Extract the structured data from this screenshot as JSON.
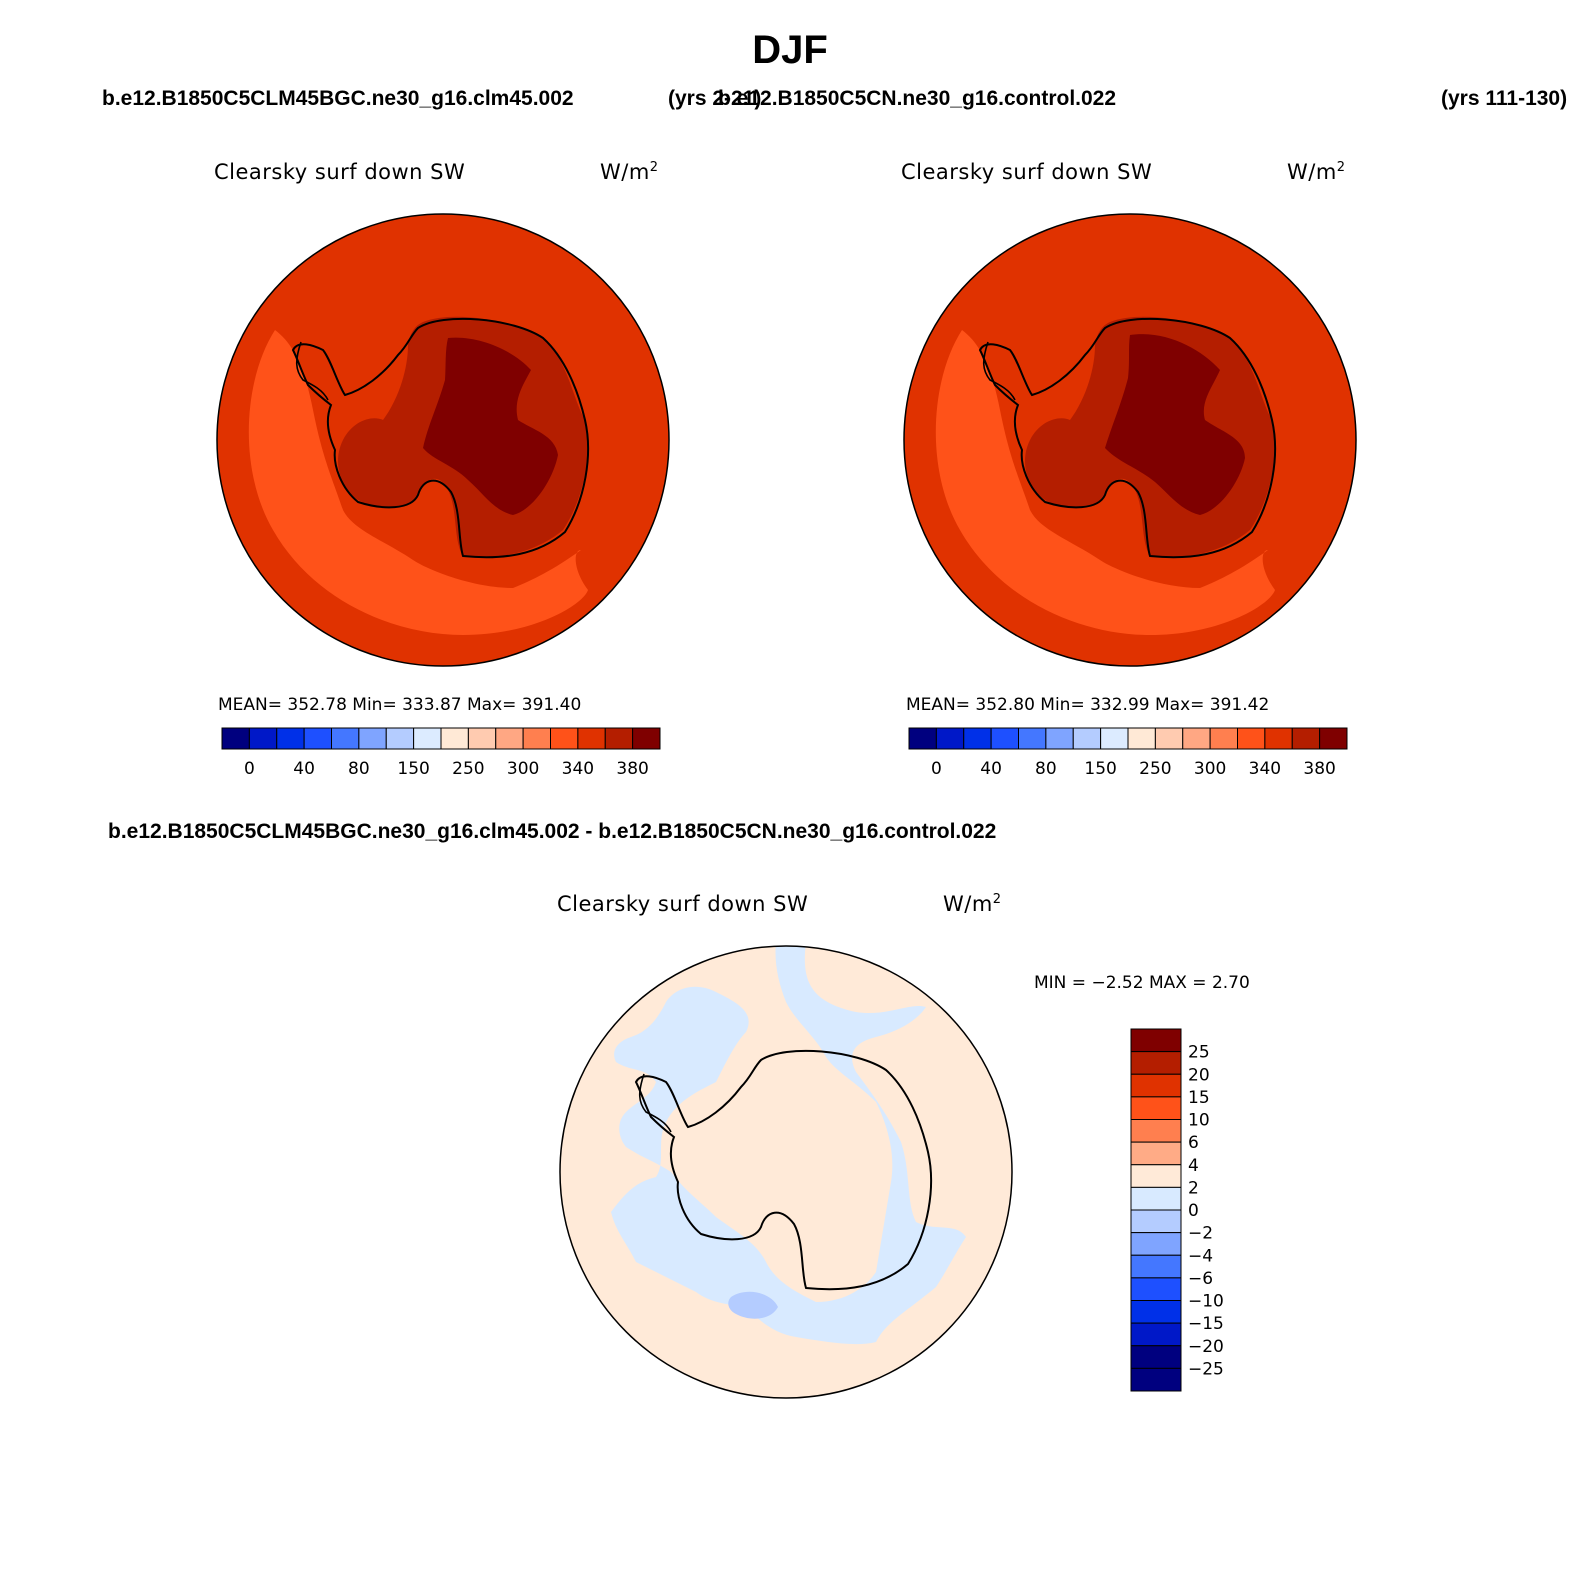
{
  "page": {
    "season": "DJF",
    "case_left": "b.e12.B1850C5CLM45BGC.ne30_g16.clm45.002",
    "years_left": "(yrs 2-21)",
    "case_right": "b.e12.B1850C5CN.ne30_g16.control.022",
    "years_right": "(yrs 111-130)",
    "difference_title": "b.e12.B1850C5CLM45BGC.ne30_g16.clm45.002 - b.e12.B1850C5CN.ne30_g16.control.022"
  },
  "colors": {
    "abs_palette": [
      "#00007f",
      "#0018c8",
      "#0030e8",
      "#1e50ff",
      "#4477ff",
      "#7fa4ff",
      "#b4ccff",
      "#dcebff",
      "#ffe9d6",
      "#ffcbb0",
      "#ffa783",
      "#ff7f4f",
      "#ff5219",
      "#e03200",
      "#b41e00",
      "#7f0000"
    ],
    "diff_palette": [
      "#00007f",
      "#0018c8",
      "#0030e8",
      "#1e50ff",
      "#4477ff",
      "#7fa4ff",
      "#b4ccff",
      "#d8eaff",
      "#ffead8",
      "#ffab86",
      "#ff7f4f",
      "#ff5219",
      "#e03200",
      "#b41e00",
      "#7f0000"
    ],
    "ocean": "#e03200",
    "band": "#ff5219",
    "antarctic_rim": "#b41e00",
    "antarctic_plateau": "#7f0000",
    "diff_positive": "#ffead8",
    "diff_negative": "#d8eaff"
  },
  "panels": {
    "left": {
      "variable": "Clearsky surf down SW",
      "units": "W/m",
      "units_exp": "2",
      "stats": "MEAN= 352.78   Min= 333.87   Max= 391.40",
      "colorbar_ticks": [
        "0",
        "40",
        "80",
        "150",
        "250",
        "300",
        "340",
        "380"
      ]
    },
    "right": {
      "variable": "Clearsky surf down SW",
      "units": "W/m",
      "units_exp": "2",
      "stats": "MEAN= 352.80   Min= 332.99   Max= 391.42",
      "colorbar_ticks": [
        "0",
        "40",
        "80",
        "150",
        "250",
        "300",
        "340",
        "380"
      ]
    },
    "diff": {
      "variable": "Clearsky surf down SW",
      "units": "W/m",
      "units_exp": "2",
      "stats": "MIN =  −2.52 MAX =   2.70",
      "colorbar_ticks": [
        "25",
        "20",
        "15",
        "10",
        "6",
        "4",
        "2",
        "0",
        "−2",
        "−4",
        "−6",
        "−10",
        "−15",
        "−20",
        "−25"
      ]
    }
  }
}
